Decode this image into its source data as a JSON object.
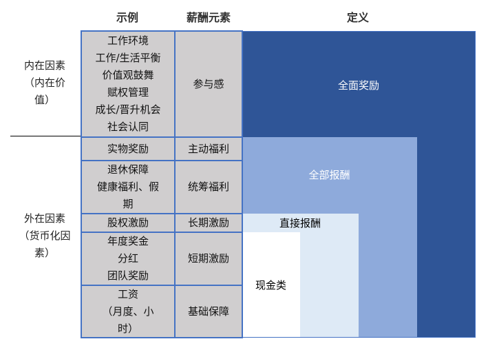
{
  "headers": {
    "examples": "示例",
    "element": "薪酬元素",
    "definition": "定义"
  },
  "side_labels": {
    "intrinsic": "内在因素\n（内在价\n值）",
    "extrinsic": "外在因素\n（货币化因\n素）"
  },
  "rows": [
    {
      "examples": "工作环境\n工作/生活平衡\n价值观鼓舞\n赋权管理\n成长/晋升机会\n社会认同",
      "element": "参与感"
    },
    {
      "examples": "实物奖励",
      "element": "主动福利"
    },
    {
      "examples": "退休保障\n健康福利、假\n期",
      "element": "统筹福利"
    },
    {
      "examples": "股权激励",
      "element": "长期激励"
    },
    {
      "examples": "年度奖金\n分红\n团队奖励",
      "element": "短期激励"
    },
    {
      "examples": "工资\n（月度、小\n时）",
      "element": "基础保障"
    }
  ],
  "definitions": {
    "total_rewards": "全面奖励",
    "total_compensation": "全部报酬",
    "direct_compensation": "直接报酬",
    "cash": "现金类"
  },
  "colors": {
    "total_rewards": "#2f5597",
    "total_compensation": "#8eaadb",
    "direct_compensation": "#deeaf6",
    "cash": "#ffffff",
    "table_fill": "#d0cecf",
    "border": "#4472c4"
  }
}
